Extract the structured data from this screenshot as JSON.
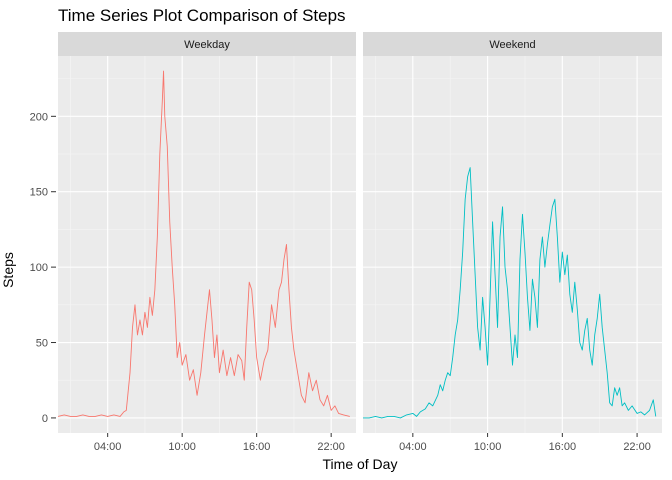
{
  "chart_data": {
    "type": "line",
    "title": "Time Series Plot Comparison of Steps",
    "xlabel": "Time of Day",
    "ylabel": "Steps",
    "x_domain_hours": [
      0,
      24
    ],
    "x_ticks": [
      {
        "hours": 4,
        "label": "04:00"
      },
      {
        "hours": 10,
        "label": "10:00"
      },
      {
        "hours": 16,
        "label": "16:00"
      },
      {
        "hours": 22,
        "label": "22:00"
      }
    ],
    "ylim": [
      -10,
      240
    ],
    "y_ticks": [
      0,
      50,
      100,
      150,
      200
    ],
    "grid": true,
    "facets": [
      {
        "name": "Weekday",
        "color": "#F8766D",
        "points": [
          [
            0,
            1
          ],
          [
            0.5,
            2
          ],
          [
            1,
            1
          ],
          [
            1.5,
            1
          ],
          [
            2,
            2
          ],
          [
            2.5,
            1
          ],
          [
            3,
            1
          ],
          [
            3.5,
            2
          ],
          [
            4,
            1
          ],
          [
            4.5,
            2
          ],
          [
            5,
            1
          ],
          [
            5.3,
            4
          ],
          [
            5.5,
            5
          ],
          [
            5.8,
            30
          ],
          [
            6,
            60
          ],
          [
            6.2,
            75
          ],
          [
            6.4,
            55
          ],
          [
            6.6,
            65
          ],
          [
            6.8,
            55
          ],
          [
            7,
            70
          ],
          [
            7.2,
            60
          ],
          [
            7.4,
            80
          ],
          [
            7.6,
            68
          ],
          [
            7.8,
            85
          ],
          [
            8,
            120
          ],
          [
            8.2,
            175
          ],
          [
            8.4,
            210
          ],
          [
            8.5,
            230
          ],
          [
            8.6,
            200
          ],
          [
            8.8,
            180
          ],
          [
            9,
            130
          ],
          [
            9.2,
            100
          ],
          [
            9.4,
            75
          ],
          [
            9.6,
            40
          ],
          [
            9.8,
            50
          ],
          [
            10,
            35
          ],
          [
            10.3,
            42
          ],
          [
            10.6,
            25
          ],
          [
            10.9,
            32
          ],
          [
            11.2,
            15
          ],
          [
            11.5,
            30
          ],
          [
            11.8,
            55
          ],
          [
            12,
            70
          ],
          [
            12.2,
            85
          ],
          [
            12.4,
            65
          ],
          [
            12.6,
            40
          ],
          [
            12.8,
            55
          ],
          [
            13,
            30
          ],
          [
            13.3,
            45
          ],
          [
            13.6,
            28
          ],
          [
            13.9,
            40
          ],
          [
            14.2,
            28
          ],
          [
            14.5,
            42
          ],
          [
            14.8,
            38
          ],
          [
            15,
            25
          ],
          [
            15.2,
            60
          ],
          [
            15.4,
            90
          ],
          [
            15.6,
            85
          ],
          [
            15.8,
            65
          ],
          [
            16,
            40
          ],
          [
            16.3,
            25
          ],
          [
            16.6,
            38
          ],
          [
            16.9,
            45
          ],
          [
            17.2,
            75
          ],
          [
            17.5,
            60
          ],
          [
            17.8,
            85
          ],
          [
            18,
            90
          ],
          [
            18.2,
            105
          ],
          [
            18.4,
            115
          ],
          [
            18.6,
            85
          ],
          [
            18.8,
            60
          ],
          [
            19,
            45
          ],
          [
            19.3,
            30
          ],
          [
            19.6,
            15
          ],
          [
            19.9,
            10
          ],
          [
            20.2,
            30
          ],
          [
            20.5,
            18
          ],
          [
            20.8,
            25
          ],
          [
            21.1,
            12
          ],
          [
            21.4,
            8
          ],
          [
            21.7,
            15
          ],
          [
            22,
            5
          ],
          [
            22.3,
            8
          ],
          [
            22.6,
            3
          ],
          [
            23,
            2
          ],
          [
            23.5,
            1
          ]
        ]
      },
      {
        "name": "Weekend",
        "color": "#00BFC4",
        "points": [
          [
            0,
            0
          ],
          [
            0.5,
            0
          ],
          [
            1,
            1
          ],
          [
            1.5,
            0
          ],
          [
            2,
            1
          ],
          [
            2.5,
            1
          ],
          [
            3,
            0
          ],
          [
            3.5,
            2
          ],
          [
            4,
            3
          ],
          [
            4.3,
            1
          ],
          [
            4.6,
            4
          ],
          [
            5,
            6
          ],
          [
            5.3,
            10
          ],
          [
            5.6,
            8
          ],
          [
            6,
            15
          ],
          [
            6.2,
            22
          ],
          [
            6.4,
            18
          ],
          [
            6.6,
            25
          ],
          [
            6.8,
            30
          ],
          [
            7,
            28
          ],
          [
            7.2,
            40
          ],
          [
            7.4,
            55
          ],
          [
            7.6,
            65
          ],
          [
            7.8,
            85
          ],
          [
            8,
            110
          ],
          [
            8.2,
            145
          ],
          [
            8.4,
            160
          ],
          [
            8.6,
            166
          ],
          [
            8.8,
            130
          ],
          [
            9,
            95
          ],
          [
            9.2,
            60
          ],
          [
            9.4,
            45
          ],
          [
            9.6,
            80
          ],
          [
            9.8,
            60
          ],
          [
            10,
            35
          ],
          [
            10.2,
            80
          ],
          [
            10.4,
            130
          ],
          [
            10.6,
            95
          ],
          [
            10.8,
            60
          ],
          [
            11,
            120
          ],
          [
            11.2,
            140
          ],
          [
            11.4,
            100
          ],
          [
            11.6,
            85
          ],
          [
            11.8,
            60
          ],
          [
            12,
            35
          ],
          [
            12.2,
            55
          ],
          [
            12.4,
            40
          ],
          [
            12.6,
            105
          ],
          [
            12.8,
            135
          ],
          [
            13,
            110
          ],
          [
            13.2,
            80
          ],
          [
            13.4,
            58
          ],
          [
            13.6,
            92
          ],
          [
            13.8,
            80
          ],
          [
            14,
            60
          ],
          [
            14.2,
            105
          ],
          [
            14.4,
            120
          ],
          [
            14.6,
            100
          ],
          [
            14.8,
            115
          ],
          [
            15,
            128
          ],
          [
            15.2,
            140
          ],
          [
            15.4,
            145
          ],
          [
            15.6,
            120
          ],
          [
            15.8,
            90
          ],
          [
            16,
            110
          ],
          [
            16.2,
            95
          ],
          [
            16.4,
            108
          ],
          [
            16.6,
            82
          ],
          [
            16.8,
            70
          ],
          [
            17,
            90
          ],
          [
            17.2,
            72
          ],
          [
            17.4,
            50
          ],
          [
            17.6,
            45
          ],
          [
            17.8,
            58
          ],
          [
            18,
            66
          ],
          [
            18.2,
            45
          ],
          [
            18.4,
            35
          ],
          [
            18.6,
            55
          ],
          [
            18.8,
            66
          ],
          [
            19,
            82
          ],
          [
            19.2,
            60
          ],
          [
            19.4,
            45
          ],
          [
            19.6,
            30
          ],
          [
            19.8,
            10
          ],
          [
            20,
            8
          ],
          [
            20.2,
            20
          ],
          [
            20.4,
            15
          ],
          [
            20.6,
            20
          ],
          [
            20.8,
            8
          ],
          [
            21,
            10
          ],
          [
            21.3,
            5
          ],
          [
            21.6,
            8
          ],
          [
            22,
            3
          ],
          [
            22.3,
            4
          ],
          [
            22.6,
            2
          ],
          [
            23,
            5
          ],
          [
            23.3,
            12
          ],
          [
            23.5,
            1
          ]
        ]
      }
    ]
  }
}
